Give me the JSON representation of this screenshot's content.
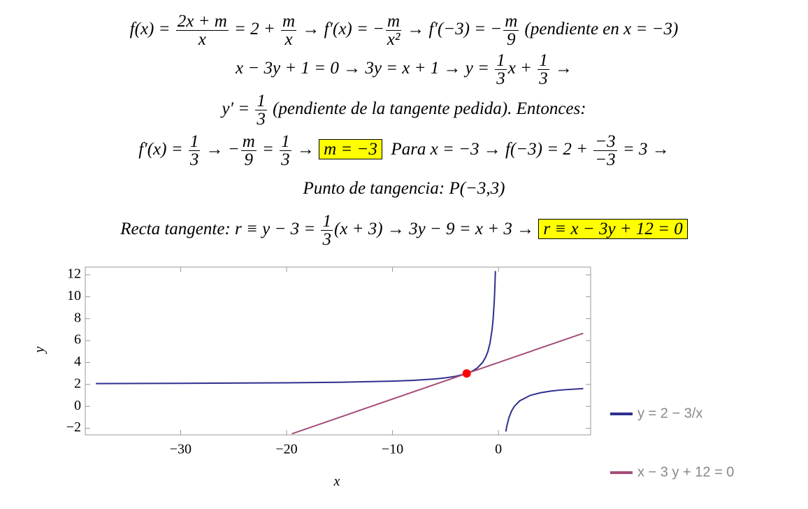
{
  "lines": [
    [
      {
        "text": "f(x) = "
      },
      {
        "num": "2x + m",
        "den": "x"
      },
      {
        "text": " = 2 + "
      },
      {
        "num": "m",
        "den": "x"
      },
      {
        "text": " → f′(x) = −"
      },
      {
        "num": "m",
        "den": "x²"
      },
      {
        "text": " → f′(−3) = −"
      },
      {
        "num": "m",
        "den": "9"
      },
      {
        "text": " (pendiente en x = −3)"
      }
    ],
    [
      {
        "text": "x − 3y + 1 = 0 → 3y = x + 1 → y = "
      },
      {
        "num": "1",
        "den": "3"
      },
      {
        "text": "x + "
      },
      {
        "num": "1",
        "den": "3"
      },
      {
        "text": " →"
      }
    ],
    [
      {
        "text": "y′ = "
      },
      {
        "num": "1",
        "den": "3"
      },
      {
        "text": " (pendiente de la tangente pedida). Entonces:"
      }
    ],
    [
      {
        "text": "f′(x) = "
      },
      {
        "num": "1",
        "den": "3"
      },
      {
        "text": " → −"
      },
      {
        "num": "m",
        "den": "9"
      },
      {
        "text": " = "
      },
      {
        "num": "1",
        "den": "3"
      },
      {
        "text": " → "
      },
      {
        "text": "m = −3",
        "highlight": true
      },
      {
        "text": "  Para x = −3 → f(−3) = 2 + "
      },
      {
        "num": "−3",
        "den": "−3"
      },
      {
        "text": " = 3 →"
      }
    ],
    [
      {
        "text": "Punto de tangencia: P(−3,3)"
      }
    ],
    [
      {
        "text": "Recta tangente: r ≡ y − 3 = "
      },
      {
        "num": "1",
        "den": "3"
      },
      {
        "text": "(x + 3) → 3y − 9 = x + 3 → "
      },
      {
        "text": "r ≡ x − 3y + 12 = 0",
        "highlight": true
      }
    ]
  ],
  "chart_data": {
    "type": "line",
    "x_label": "x",
    "y_label": "y",
    "xlim": [
      -39,
      8.7
    ],
    "ylim": [
      -2.6,
      12.7
    ],
    "xticks": [
      {
        "value": -30,
        "label": "−30"
      },
      {
        "value": -20,
        "label": "−20"
      },
      {
        "value": -10,
        "label": "−10"
      },
      0
    ],
    "yticks": [
      {
        "value": -2,
        "label": "−2"
      },
      0,
      2,
      4,
      6,
      8,
      10,
      12
    ],
    "legend": "outside-right",
    "series": [
      {
        "name": "y = 2 − 3/x",
        "color": "#2f2f8f",
        "x": [
          -38,
          -30,
          -20,
          -15,
          -10,
          -8,
          -6,
          -5,
          -4,
          -3,
          -2.5,
          -2,
          -1.5,
          -1.2,
          -1,
          -0.8,
          -0.6,
          -0.5,
          -0.4,
          -0.35,
          -0.3,
          -0.29,
          0,
          0.7,
          0.75,
          0.8,
          1,
          1.25,
          1.5,
          2,
          3,
          4,
          5,
          6,
          8
        ],
        "values": [
          2.079,
          2.1,
          2.15,
          2.2,
          2.3,
          2.375,
          2.5,
          2.6,
          2.75,
          3,
          3.2,
          3.5,
          4,
          4.5,
          5,
          5.75,
          7,
          8,
          9.5,
          10.57,
          12,
          12.34,
          null,
          -2.29,
          -2,
          -1.75,
          -1,
          -0.4,
          0,
          0.5,
          1,
          1.25,
          1.4,
          1.5,
          1.625
        ]
      },
      {
        "name": "x − 3 y + 12 = 0",
        "color": "#a64d79",
        "x": [
          -19.5,
          8
        ],
        "values": [
          -2.5,
          6.667
        ]
      }
    ],
    "points": [
      {
        "x": -3,
        "y": 3,
        "color": "#ff0000"
      }
    ]
  }
}
